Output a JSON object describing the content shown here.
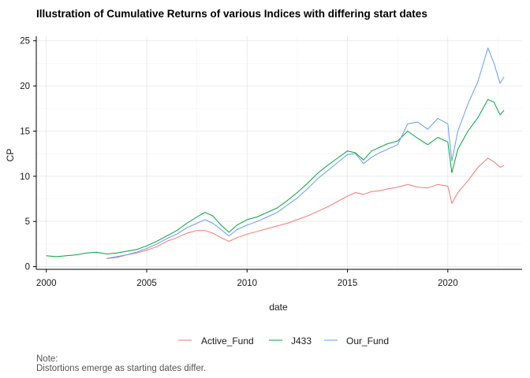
{
  "chart_data": {
    "type": "line",
    "title": "Illustration of Cumulative Returns of various Indices with differing start dates",
    "xlabel": "date",
    "ylabel": "CP",
    "xlim": [
      1999.5,
      2023.7
    ],
    "ylim": [
      -0.3,
      25.5
    ],
    "x_ticks": [
      2000,
      2005,
      2010,
      2015,
      2020
    ],
    "x_tick_labels": [
      "2000",
      "2005",
      "2010",
      "2015",
      "2020"
    ],
    "y_ticks": [
      0,
      5,
      10,
      15,
      20,
      25
    ],
    "y_tick_labels": [
      "0",
      "5",
      "10",
      "15",
      "20",
      "25"
    ],
    "grid": true,
    "legend_position": "bottom",
    "series": [
      {
        "name": "Active_Fund",
        "color": "#F8766D",
        "x": [
          2003.0,
          2003.5,
          2004.0,
          2004.5,
          2005.0,
          2005.5,
          2006.0,
          2006.5,
          2007.0,
          2007.5,
          2007.9,
          2008.3,
          2008.7,
          2009.1,
          2009.5,
          2010.0,
          2010.5,
          2011.0,
          2011.5,
          2012.0,
          2012.5,
          2013.0,
          2013.5,
          2014.0,
          2014.5,
          2015.0,
          2015.4,
          2015.8,
          2016.2,
          2016.6,
          2017.0,
          2017.5,
          2018.0,
          2018.5,
          2019.0,
          2019.5,
          2020.0,
          2020.2,
          2020.5,
          2021.0,
          2021.5,
          2022.0,
          2022.3,
          2022.6,
          2022.8
        ],
        "y": [
          0.9,
          1.0,
          1.3,
          1.5,
          1.8,
          2.2,
          2.8,
          3.2,
          3.7,
          4.0,
          4.0,
          3.7,
          3.2,
          2.8,
          3.2,
          3.6,
          3.9,
          4.2,
          4.5,
          4.8,
          5.2,
          5.6,
          6.1,
          6.6,
          7.2,
          7.8,
          8.2,
          8.0,
          8.3,
          8.4,
          8.6,
          8.8,
          9.1,
          8.8,
          8.7,
          9.1,
          8.9,
          7.0,
          8.2,
          9.5,
          11.0,
          12.0,
          11.6,
          11.0,
          11.2
        ]
      },
      {
        "name": "J433",
        "color": "#00A63C",
        "x": [
          2000.0,
          2000.5,
          2001.0,
          2001.5,
          2002.0,
          2002.5,
          2003.0,
          2003.5,
          2004.0,
          2004.5,
          2005.0,
          2005.5,
          2006.0,
          2006.5,
          2007.0,
          2007.5,
          2007.9,
          2008.3,
          2008.7,
          2009.1,
          2009.5,
          2010.0,
          2010.5,
          2011.0,
          2011.5,
          2012.0,
          2012.5,
          2013.0,
          2013.5,
          2014.0,
          2014.5,
          2015.0,
          2015.4,
          2015.8,
          2016.2,
          2016.6,
          2017.0,
          2017.5,
          2018.0,
          2018.5,
          2019.0,
          2019.5,
          2020.0,
          2020.2,
          2020.5,
          2021.0,
          2021.5,
          2022.0,
          2022.3,
          2022.6,
          2022.8
        ],
        "y": [
          1.2,
          1.1,
          1.2,
          1.3,
          1.5,
          1.6,
          1.4,
          1.5,
          1.7,
          1.9,
          2.3,
          2.8,
          3.4,
          4.0,
          4.8,
          5.5,
          6.0,
          5.6,
          4.6,
          3.8,
          4.6,
          5.2,
          5.5,
          6.0,
          6.5,
          7.3,
          8.2,
          9.2,
          10.3,
          11.2,
          12.0,
          12.8,
          12.6,
          11.8,
          12.8,
          13.2,
          13.6,
          13.9,
          15.0,
          14.2,
          13.5,
          14.3,
          13.8,
          10.4,
          13.0,
          15.0,
          16.5,
          18.5,
          18.2,
          16.8,
          17.3
        ]
      },
      {
        "name": "Our_Fund",
        "color": "#619CFF",
        "x": [
          2003.0,
          2003.5,
          2004.0,
          2004.5,
          2005.0,
          2005.5,
          2006.0,
          2006.5,
          2007.0,
          2007.5,
          2007.9,
          2008.3,
          2008.7,
          2009.1,
          2009.5,
          2010.0,
          2010.5,
          2011.0,
          2011.5,
          2012.0,
          2012.5,
          2013.0,
          2013.5,
          2014.0,
          2014.5,
          2015.0,
          2015.4,
          2015.8,
          2016.2,
          2016.6,
          2017.0,
          2017.5,
          2018.0,
          2018.5,
          2019.0,
          2019.5,
          2020.0,
          2020.2,
          2020.5,
          2021.0,
          2021.5,
          2022.0,
          2022.3,
          2022.6,
          2022.8
        ],
        "y": [
          0.9,
          1.1,
          1.3,
          1.6,
          2.0,
          2.5,
          3.1,
          3.6,
          4.3,
          4.8,
          5.2,
          4.8,
          4.1,
          3.4,
          4.1,
          4.6,
          5.0,
          5.5,
          6.0,
          6.8,
          7.6,
          8.6,
          9.7,
          10.6,
          11.5,
          12.4,
          12.5,
          11.4,
          12.1,
          12.6,
          13.0,
          13.5,
          15.8,
          16.0,
          15.2,
          16.4,
          15.8,
          11.7,
          15.0,
          18.0,
          20.5,
          24.2,
          22.5,
          20.3,
          21.0
        ]
      }
    ],
    "note_label": "Note:",
    "note_text": "Distortions emerge as starting dates differ."
  }
}
